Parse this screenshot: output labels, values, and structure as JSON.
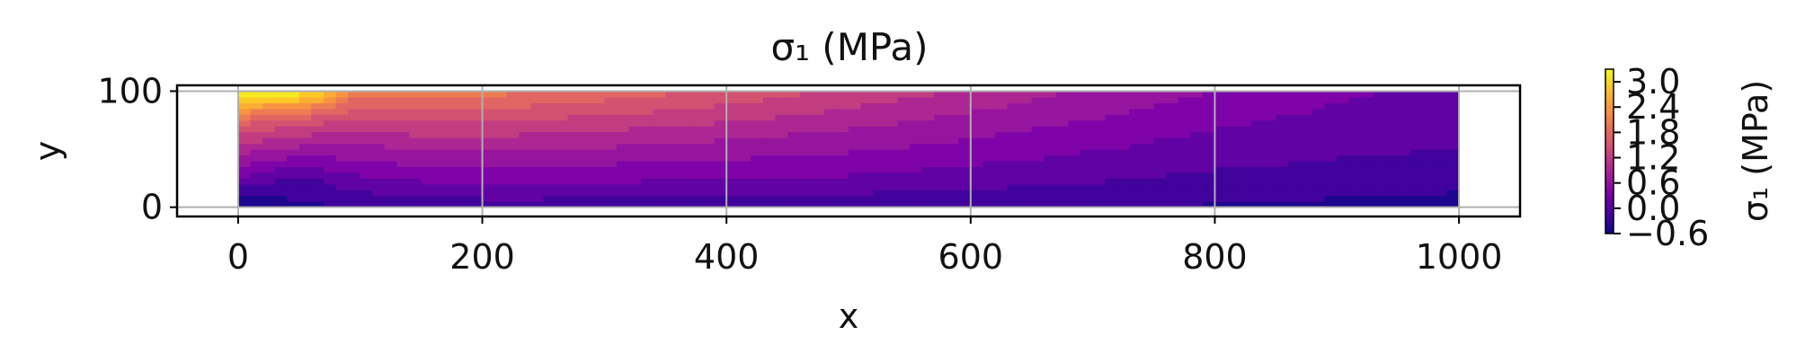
{
  "chart_data": {
    "type": "heatmap",
    "title": "σ₁ (MPa)",
    "xlabel": "x",
    "ylabel": "y",
    "xlim": [
      -50,
      1050
    ],
    "ylim": [
      -8,
      105
    ],
    "x_ticks": [
      0,
      200,
      400,
      600,
      800,
      1000
    ],
    "y_ticks": [
      0,
      100
    ],
    "grid": true,
    "colormap": "plasma",
    "domain": {
      "x": [
        0,
        1000
      ],
      "y": [
        0,
        100
      ]
    },
    "colorbar": {
      "label": "σ₁ (MPa)",
      "range": [
        -0.6,
        3.3
      ],
      "ticks": [
        "3.0",
        "2.4",
        "1.8",
        "1.2",
        "0.6",
        "0.0",
        "−0.6"
      ],
      "tick_values": [
        3.0,
        2.4,
        1.8,
        1.2,
        0.6,
        0.0,
        -0.6
      ]
    },
    "field_samples": {
      "x": [
        0,
        50,
        100,
        150,
        200,
        300,
        400,
        500,
        600,
        700,
        800,
        900,
        1000
      ],
      "y": [
        0,
        25,
        50,
        75,
        100
      ],
      "values": [
        [
          -0.6,
          -0.4,
          -0.3,
          -0.3,
          -0.2,
          -0.2,
          -0.2,
          -0.25,
          -0.3,
          -0.3,
          -0.35,
          -0.4,
          -0.45
        ],
        [
          0.2,
          -0.1,
          0.2,
          0.3,
          0.35,
          0.3,
          0.25,
          0.2,
          0.1,
          0.0,
          -0.1,
          -0.15,
          -0.2
        ],
        [
          0.9,
          0.7,
          0.7,
          0.8,
          0.8,
          0.75,
          0.65,
          0.55,
          0.4,
          0.25,
          0.1,
          0.0,
          -0.05
        ],
        [
          1.8,
          1.5,
          1.3,
          1.4,
          1.4,
          1.25,
          1.1,
          0.9,
          0.7,
          0.5,
          0.3,
          0.15,
          0.05
        ],
        [
          3.2,
          3.3,
          2.0,
          2.1,
          2.0,
          1.8,
          1.55,
          1.3,
          1.0,
          0.75,
          0.5,
          0.3,
          0.15
        ]
      ]
    }
  }
}
